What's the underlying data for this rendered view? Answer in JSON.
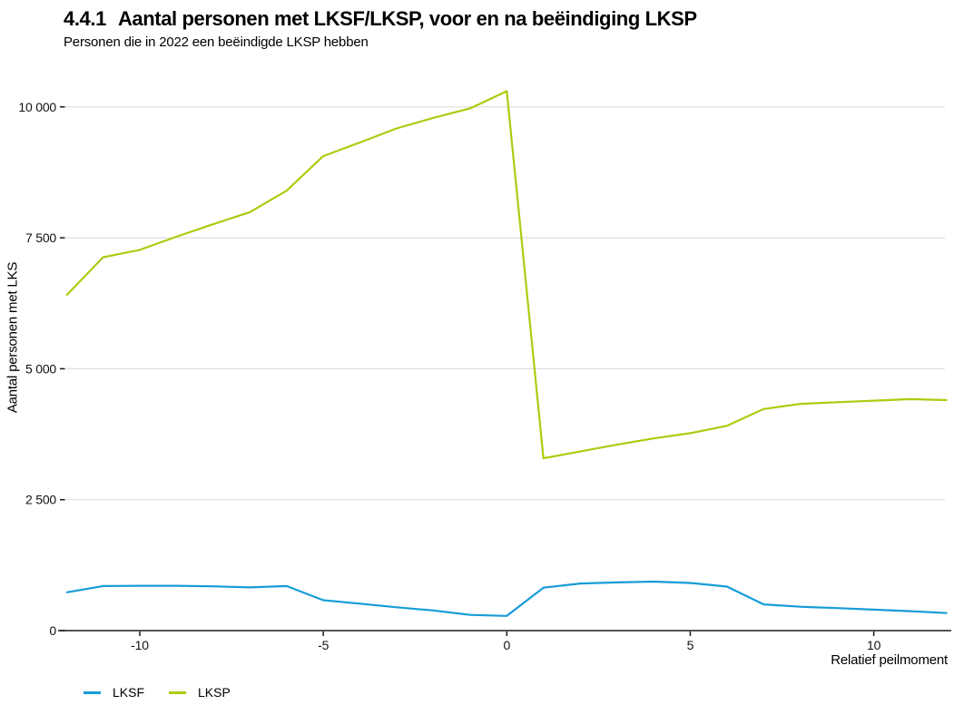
{
  "title_number": "4.4.1",
  "title_text": "Aantal personen met LKSF/LKSP, voor en na beëindiging LKSP",
  "subtitle": "Personen die in 2022 een beëindigde LKSP hebben",
  "colors": {
    "lksf_line": "#179cd7",
    "lksp_line": "#adcb10",
    "gridline": "#dedede",
    "axis_line": "#3d3d3d",
    "tick": "#1a1a1a",
    "text": "#000000",
    "background": "#ffffff"
  },
  "chart_data": {
    "type": "line",
    "title": "4.4.1  Aantal personen met LKSF/LKSP, voor en na beëindiging LKSP",
    "subtitle": "Personen die in 2022 een beëindigde LKSP hebben",
    "xlabel": "Relatief peilmoment",
    "ylabel": "Aantal personen met LKS",
    "grid": "horizontal-only",
    "legend_position": "bottom-left",
    "xlim": [
      -12,
      12
    ],
    "ylim": [
      0,
      10430
    ],
    "x_ticks": [
      -10,
      -5,
      0,
      5,
      10
    ],
    "x_tick_labels": [
      "-10",
      "-5",
      "0",
      "5",
      "10"
    ],
    "y_ticks": [
      0,
      2500,
      5000,
      7500,
      10000
    ],
    "y_tick_labels": [
      "0",
      "2 500",
      "5 000",
      "7 500",
      "10 000"
    ],
    "x": [
      -12,
      -11,
      -10,
      -9,
      -8,
      -7,
      -6,
      -5,
      -4,
      -3,
      -2,
      -1,
      0,
      1,
      2,
      3,
      4,
      5,
      6,
      7,
      8,
      9,
      10,
      11,
      12
    ],
    "series": [
      {
        "name": "LKSF",
        "color": "#179cd7",
        "values": [
          730,
          850,
          855,
          855,
          845,
          825,
          850,
          580,
          515,
          445,
          385,
          300,
          280,
          820,
          900,
          920,
          935,
          910,
          840,
          500,
          455,
          430,
          400,
          370,
          335
        ]
      },
      {
        "name": "LKSP",
        "color": "#adcb10",
        "values": [
          6400,
          7130,
          7270,
          7520,
          7760,
          7990,
          8400,
          9060,
          9320,
          9590,
          9790,
          9970,
          10300,
          3290,
          3420,
          3550,
          3670,
          3770,
          3910,
          4230,
          4330,
          4360,
          4390,
          4420,
          4400
        ]
      }
    ]
  }
}
